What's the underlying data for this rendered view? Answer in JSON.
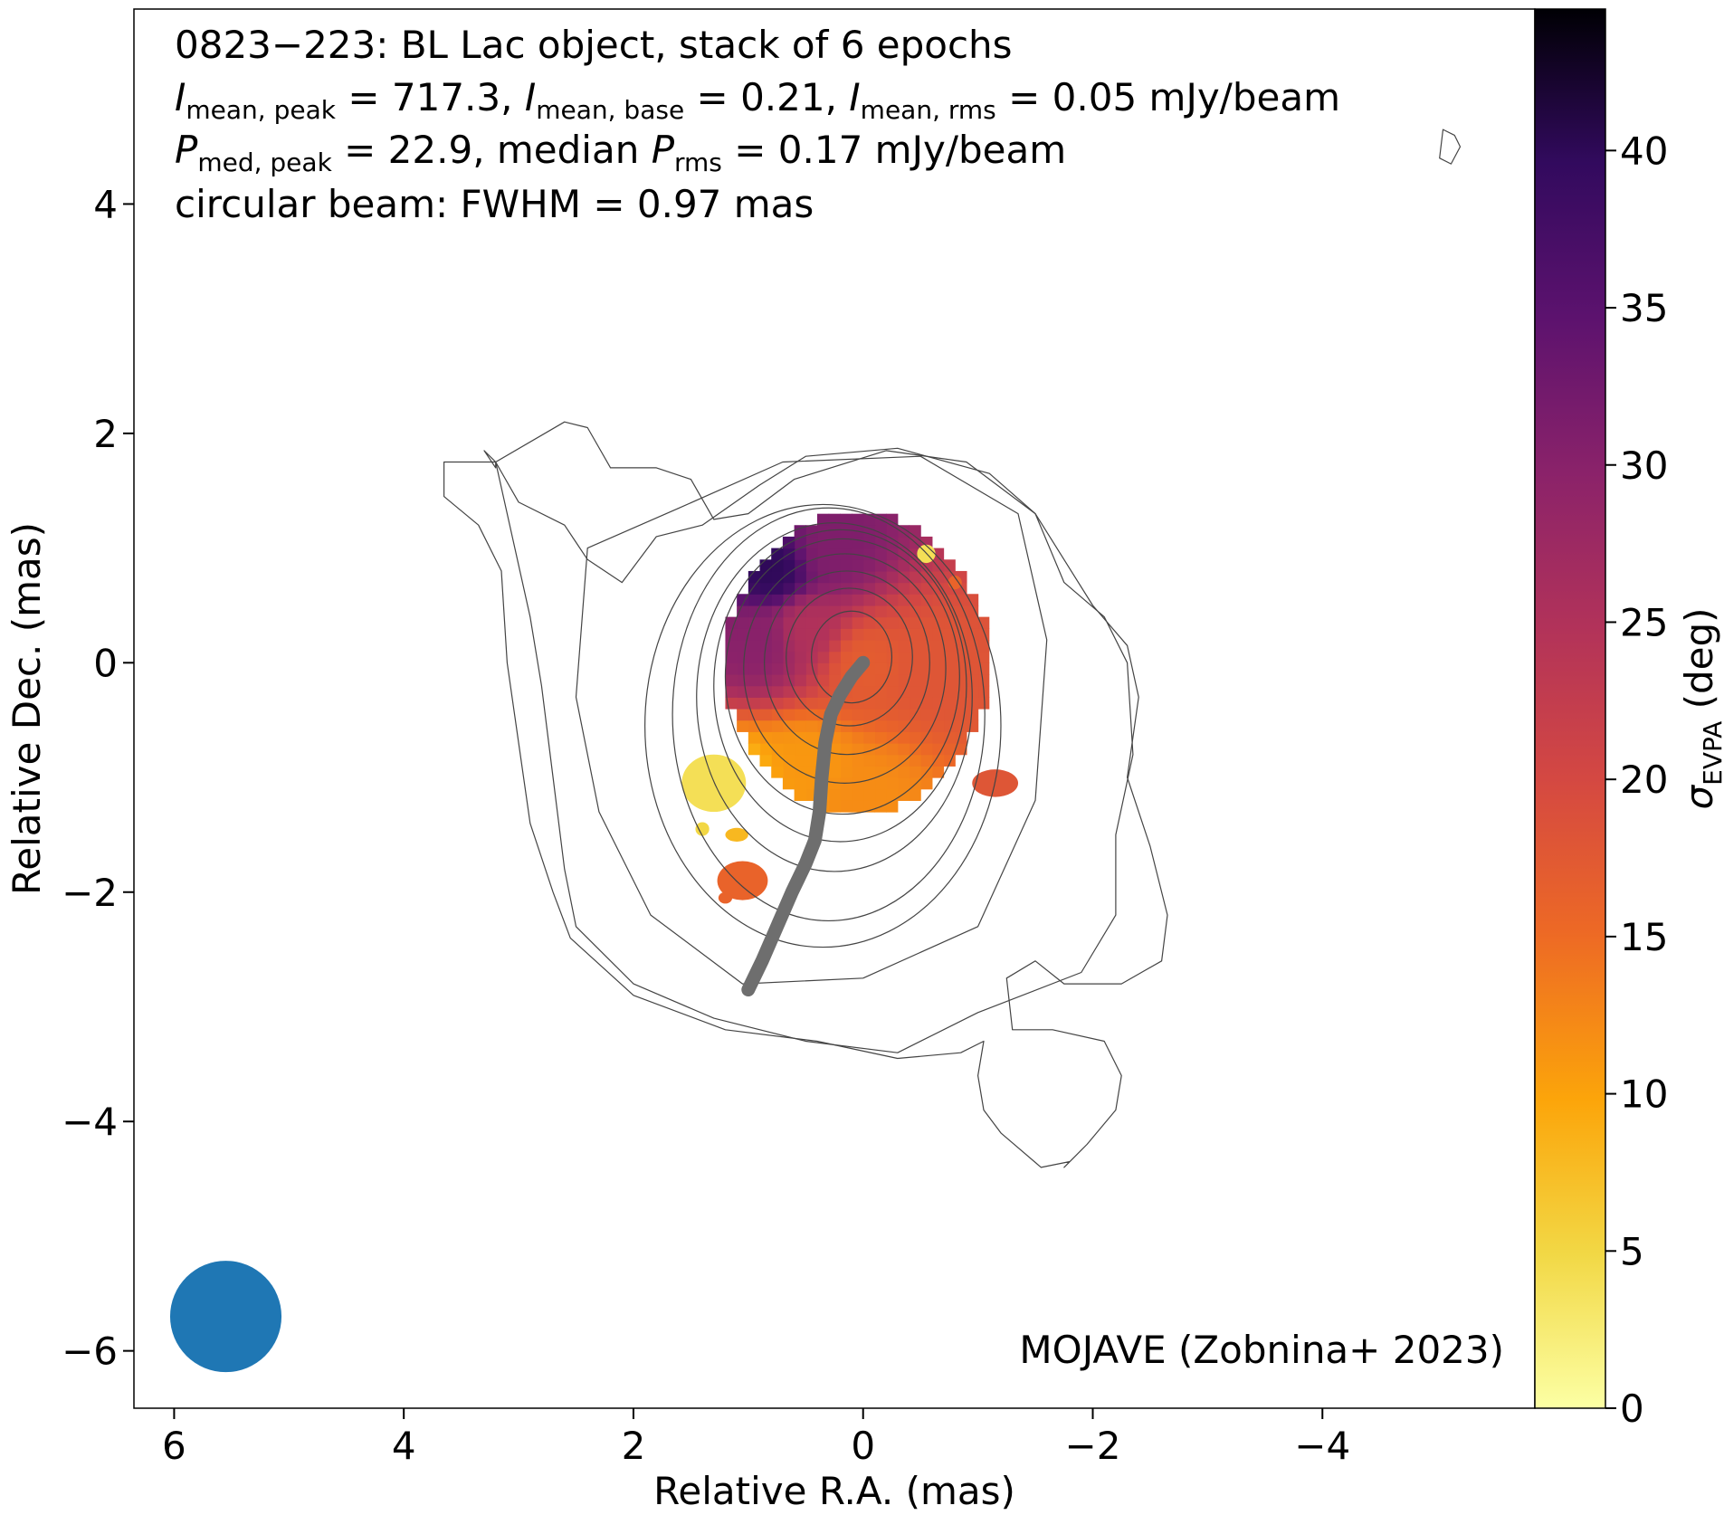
{
  "chart_data": {
    "type": "heatmap",
    "annotation": {
      "line1": "0823−223: BL Lac object, stack of 6 epochs",
      "line2": {
        "i1_sub": "mean, peak",
        "i1_val": " = 717.3, ",
        "i2_sub": "mean, base",
        "i2_val": " = 0.21, ",
        "i3_sub": "mean, rms",
        "i3_val": " = 0.05 mJy/beam"
      },
      "line3": {
        "p1_sub": "med, peak",
        "p1_val": " = 22.9, median ",
        "p2_sub": "rms",
        "p2_val": " = 0.17 mJy/beam"
      },
      "line4": "circular beam: FWHM = 0.97 mas",
      "credit": "MOJAVE (Zobnina+ 2023)"
    },
    "xlabel": "Relative R.A. (mas)",
    "ylabel": "Relative Dec. (mas)",
    "xlim": [
      6.35,
      -5.85
    ],
    "ylim": [
      -6.5,
      5.7
    ],
    "x_ticks": [
      6,
      4,
      2,
      0,
      -2,
      -4
    ],
    "x_tick_labels": [
      "6",
      "4",
      "2",
      "0",
      "−2",
      "−4"
    ],
    "y_ticks": [
      4,
      2,
      0,
      -2,
      -4,
      -6
    ],
    "y_tick_labels": [
      "4",
      "2",
      "0",
      "−2",
      "−4",
      "−6"
    ],
    "colorbar": {
      "label_main": "σ",
      "label_sub": "EVPA",
      "label_unit": " (deg)",
      "colormap": "inferno_r",
      "range": [
        0,
        44.5
      ],
      "ticks": [
        0,
        5,
        10,
        15,
        20,
        25,
        30,
        35,
        40
      ],
      "tick_labels": [
        "0",
        "5",
        "10",
        "15",
        "20",
        "25",
        "30",
        "35",
        "40"
      ]
    },
    "beam": {
      "fwhm_mas": 0.97,
      "x": 5.55,
      "y": -5.7,
      "color": "#1f77b4"
    },
    "ridge_line": {
      "color": "#6e6e6e",
      "points": [
        [
          0.0,
          0.0
        ],
        [
          0.1,
          -0.12
        ],
        [
          0.2,
          -0.28
        ],
        [
          0.28,
          -0.45
        ],
        [
          0.33,
          -0.7
        ],
        [
          0.36,
          -1.0
        ],
        [
          0.38,
          -1.3
        ],
        [
          0.42,
          -1.55
        ],
        [
          0.5,
          -1.75
        ],
        [
          0.62,
          -2.0
        ],
        [
          0.75,
          -2.3
        ],
        [
          0.88,
          -2.6
        ],
        [
          1.0,
          -2.85
        ]
      ]
    },
    "evpa_map": {
      "core": {
        "x": 0.05,
        "y": 0.0,
        "radius_x": 1.15,
        "radius_y": 1.3
      },
      "core_clip": {
        "x_min": -1.1,
        "x_max": 1.3,
        "y_min": -1.6,
        "y_max": 1.3
      },
      "gradient_stops": [
        {
          "x": 0.8,
          "y": 0.8,
          "value": 40
        },
        {
          "x": 0.3,
          "y": 1.0,
          "value": 31
        },
        {
          "x": 0.9,
          "y": 0.2,
          "value": 30
        },
        {
          "x": 0.5,
          "y": 0.3,
          "value": 25
        },
        {
          "x": 0.0,
          "y": 0.0,
          "value": 17
        },
        {
          "x": -0.6,
          "y": 0.0,
          "value": 18
        },
        {
          "x": 0.5,
          "y": -0.9,
          "value": 11
        },
        {
          "x": 1.1,
          "y": -1.1,
          "value": 7
        },
        {
          "x": 0.0,
          "y": -1.2,
          "value": 12
        }
      ],
      "outer_patches": [
        {
          "x": 1.3,
          "y": -1.05,
          "rx": 0.28,
          "ry": 0.25,
          "value": 4
        },
        {
          "x": 1.1,
          "y": -1.5,
          "rx": 0.1,
          "ry": 0.06,
          "value": 8
        },
        {
          "x": 1.4,
          "y": -1.45,
          "rx": 0.06,
          "ry": 0.06,
          "value": 5
        },
        {
          "x": 1.05,
          "y": -1.9,
          "rx": 0.22,
          "ry": 0.17,
          "value": 16
        },
        {
          "x": 1.2,
          "y": -2.05,
          "rx": 0.06,
          "ry": 0.05,
          "value": 16
        },
        {
          "x": -1.15,
          "y": -1.05,
          "rx": 0.2,
          "ry": 0.12,
          "value": 18
        },
        {
          "x": -0.55,
          "y": 0.95,
          "rx": 0.08,
          "ry": 0.08,
          "value": 4
        },
        {
          "x": -0.8,
          "y": 0.7,
          "rx": 0.06,
          "ry": 0.06,
          "value": 16
        }
      ]
    },
    "contours": {
      "color": "#444444",
      "core_ellipses": [
        {
          "x": 0.1,
          "y": 0.05,
          "rx": 0.35,
          "ry": 0.4
        },
        {
          "x": 0.12,
          "y": 0.05,
          "rx": 0.55,
          "ry": 0.6
        },
        {
          "x": 0.14,
          "y": 0.0,
          "rx": 0.72,
          "ry": 0.8
        },
        {
          "x": 0.16,
          "y": -0.05,
          "rx": 0.88,
          "ry": 1.0
        },
        {
          "x": 0.18,
          "y": -0.12,
          "rx": 1.02,
          "ry": 1.2
        },
        {
          "x": 0.2,
          "y": -0.2,
          "rx": 1.1,
          "ry": 1.36
        },
        {
          "x": 0.25,
          "y": -0.3,
          "rx": 1.2,
          "ry": 1.52
        },
        {
          "x": 0.3,
          "y": -0.45,
          "rx": 1.36,
          "ry": 1.8
        },
        {
          "x": 0.35,
          "y": -0.55,
          "rx": 1.55,
          "ry": 1.93
        }
      ],
      "outer_polygons": [
        [
          [
            2.4,
            1.0
          ],
          [
            1.6,
            1.35
          ],
          [
            0.7,
            1.75
          ],
          [
            -0.5,
            1.8
          ],
          [
            -1.35,
            1.3
          ],
          [
            -1.6,
            0.2
          ],
          [
            -1.5,
            -1.2
          ],
          [
            -1.0,
            -2.3
          ],
          [
            0.0,
            -2.75
          ],
          [
            1.05,
            -2.8
          ],
          [
            1.85,
            -2.2
          ],
          [
            2.3,
            -1.3
          ],
          [
            2.5,
            -0.3
          ],
          [
            2.4,
            1.0
          ]
        ],
        [
          [
            3.2,
            1.75
          ],
          [
            3.0,
            1.4
          ],
          [
            2.6,
            1.2
          ],
          [
            2.4,
            0.9
          ],
          [
            2.1,
            0.7
          ],
          [
            1.8,
            1.1
          ],
          [
            1.4,
            1.2
          ],
          [
            0.9,
            1.55
          ],
          [
            0.5,
            1.8
          ],
          [
            -0.3,
            1.87
          ],
          [
            -1.1,
            1.65
          ],
          [
            -1.5,
            1.3
          ],
          [
            -1.75,
            0.7
          ],
          [
            -2.1,
            0.4
          ],
          [
            -2.3,
            0.0
          ],
          [
            -2.35,
            -0.8
          ],
          [
            -2.2,
            -1.5
          ],
          [
            -2.2,
            -2.2
          ],
          [
            -1.9,
            -2.7
          ],
          [
            -1.0,
            -3.05
          ],
          [
            -0.3,
            -3.4
          ],
          [
            0.5,
            -3.3
          ],
          [
            1.3,
            -3.1
          ],
          [
            2.0,
            -2.8
          ],
          [
            2.5,
            -2.3
          ],
          [
            2.6,
            -1.8
          ],
          [
            2.7,
            -1.0
          ],
          [
            2.8,
            -0.2
          ],
          [
            2.9,
            0.4
          ],
          [
            3.2,
            1.75
          ]
        ],
        [
          [
            3.2,
            1.75
          ],
          [
            3.3,
            1.85
          ],
          [
            3.2,
            1.7
          ],
          [
            3.2,
            1.75
          ]
        ],
        [
          [
            3.2,
            1.75
          ],
          [
            2.6,
            2.1
          ],
          [
            2.4,
            2.05
          ],
          [
            2.2,
            1.7
          ],
          [
            1.8,
            1.7
          ],
          [
            1.5,
            1.6
          ],
          [
            1.3,
            1.25
          ],
          [
            1.0,
            1.3
          ],
          [
            0.6,
            1.6
          ],
          [
            -0.2,
            1.85
          ],
          [
            -0.9,
            1.75
          ],
          [
            -1.5,
            1.3
          ],
          [
            -2.0,
            0.5
          ],
          [
            -2.3,
            0.15
          ],
          [
            -2.4,
            -0.3
          ],
          [
            -2.3,
            -1.0
          ],
          [
            -2.5,
            -1.6
          ],
          [
            -2.65,
            -2.2
          ],
          [
            -2.6,
            -2.6
          ],
          [
            -2.25,
            -2.8
          ],
          [
            -1.75,
            -2.8
          ],
          [
            -1.5,
            -2.6
          ],
          [
            -1.25,
            -2.75
          ],
          [
            -1.3,
            -3.2
          ],
          [
            -1.65,
            -3.2
          ],
          [
            -2.1,
            -3.3
          ],
          [
            -2.25,
            -3.6
          ],
          [
            -2.2,
            -3.9
          ],
          [
            -1.95,
            -4.2
          ],
          [
            -1.75,
            -4.4
          ],
          [
            -1.8,
            -4.35
          ],
          [
            -1.55,
            -4.4
          ],
          [
            -1.2,
            -4.1
          ],
          [
            -1.05,
            -3.9
          ],
          [
            -1.0,
            -3.6
          ],
          [
            -1.05,
            -3.3
          ],
          [
            -0.85,
            -3.4
          ],
          [
            -0.3,
            -3.45
          ],
          [
            0.4,
            -3.3
          ],
          [
            1.2,
            -3.2
          ],
          [
            2.0,
            -2.9
          ],
          [
            2.55,
            -2.4
          ],
          [
            2.7,
            -2.0
          ],
          [
            2.9,
            -1.4
          ],
          [
            3.0,
            -0.7
          ],
          [
            3.1,
            0.0
          ],
          [
            3.15,
            0.8
          ],
          [
            3.35,
            1.2
          ],
          [
            3.65,
            1.45
          ],
          [
            3.65,
            1.75
          ],
          [
            3.2,
            1.75
          ]
        ],
        [
          [
            -5.05,
            4.65
          ],
          [
            -5.15,
            4.6
          ],
          [
            -5.2,
            4.5
          ],
          [
            -5.12,
            4.35
          ],
          [
            -5.02,
            4.4
          ],
          [
            -5.05,
            4.65
          ]
        ]
      ]
    }
  }
}
